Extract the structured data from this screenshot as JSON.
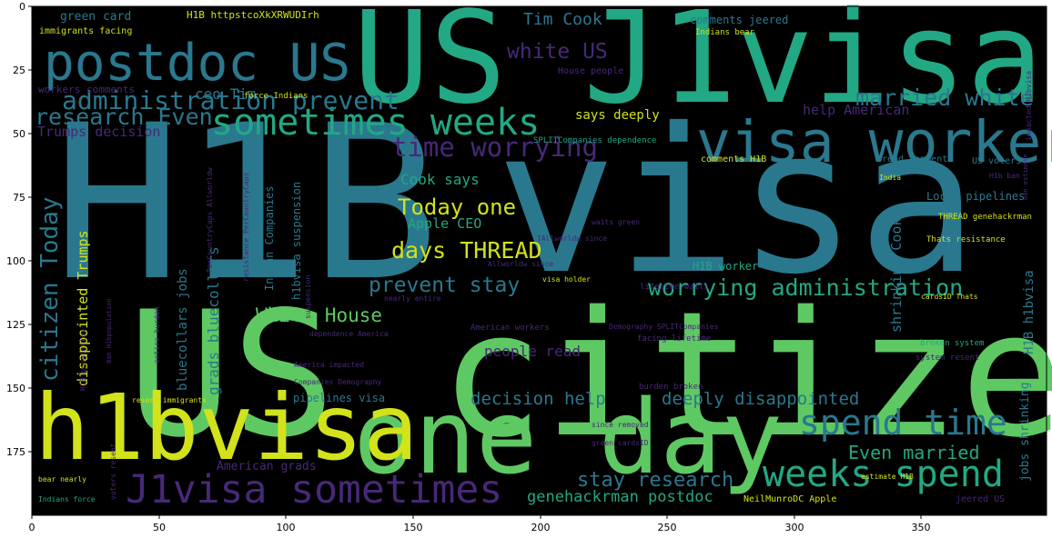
{
  "axes": {
    "x_ticks": [
      "0",
      "50",
      "100",
      "150",
      "200",
      "250",
      "300",
      "350"
    ],
    "y_ticks": [
      "0",
      "25",
      "50",
      "75",
      "100",
      "125",
      "150",
      "175"
    ]
  },
  "words": [
    {
      "text": "H1B",
      "color": "#2a788e"
    },
    {
      "text": "visa",
      "color": "#2a788e"
    },
    {
      "text": "US citizen",
      "color": "#5ec962"
    },
    {
      "text": "US J1visa",
      "color": "#22a884"
    },
    {
      "text": "one day",
      "color": "#5ec962"
    },
    {
      "text": "h1bvisa",
      "color": "#d2e21b"
    },
    {
      "text": "visa worker",
      "color": "#2a788e"
    },
    {
      "text": "postdoc US",
      "color": "#2a788e"
    },
    {
      "text": "sometimes weeks",
      "color": "#22a884"
    },
    {
      "text": "J1visa sometimes",
      "color": "#482878"
    },
    {
      "text": "spend time",
      "color": "#2a788e"
    },
    {
      "text": "weeks spend",
      "color": "#22a884"
    },
    {
      "text": "administration prevent",
      "color": "#2a788e"
    },
    {
      "text": "research Even",
      "color": "#2a788e"
    },
    {
      "text": "married white",
      "color": "#2a788e"
    },
    {
      "text": "time worrying",
      "color": "#482878"
    },
    {
      "text": "worrying administration",
      "color": "#22a884"
    },
    {
      "text": "citizen Today",
      "color": "#2a788e"
    },
    {
      "text": "Today one",
      "color": "#d2e21b"
    },
    {
      "text": "days THREAD",
      "color": "#d2e21b"
    },
    {
      "text": "prevent stay",
      "color": "#2a788e"
    },
    {
      "text": "White House",
      "color": "#5ec962"
    },
    {
      "text": "white US",
      "color": "#482878"
    },
    {
      "text": "stay research",
      "color": "#2a788e"
    },
    {
      "text": "Even married",
      "color": "#22a884"
    },
    {
      "text": "decision help",
      "color": "#2a788e"
    },
    {
      "text": "deeply disappointed",
      "color": "#2a788e"
    },
    {
      "text": "Tim Cook",
      "color": "#2a788e"
    },
    {
      "text": "Apple CEO",
      "color": "#22a884"
    },
    {
      "text": "Cook says",
      "color": "#22a884"
    },
    {
      "text": "says deeply",
      "color": "#d2e21b"
    },
    {
      "text": "ceo Tim",
      "color": "#2a788e"
    },
    {
      "text": "Trumps decision",
      "color": "#482878"
    },
    {
      "text": "help American",
      "color": "#482878"
    },
    {
      "text": "American grads",
      "color": "#482878"
    },
    {
      "text": "grads bluecollars",
      "color": "#2a788e"
    },
    {
      "text": "bluecollars jobs",
      "color": "#2a788e"
    },
    {
      "text": "genehackrman postdoc",
      "color": "#22a884"
    },
    {
      "text": "disappointed Trumps",
      "color": "#d2e21b"
    },
    {
      "text": "shrinking Cooks",
      "color": "#2a788e"
    },
    {
      "text": "H1B h1bvisa",
      "color": "#2a788e"
    },
    {
      "text": "jobs shrinking",
      "color": "#2a788e"
    },
    {
      "text": "green card",
      "color": "#2a788e"
    },
    {
      "text": "H1B httpstcoXkXRWUDIrh",
      "color": "#d2e21b"
    },
    {
      "text": "comments jeered",
      "color": "#2a788e"
    },
    {
      "text": "Indian Companies",
      "color": "#2a788e"
    },
    {
      "text": "h1bvisa suspension",
      "color": "#2a788e"
    },
    {
      "text": "people read",
      "color": "#482878"
    },
    {
      "text": "pipelines visa",
      "color": "#2a788e"
    },
    {
      "text": "H1B worker",
      "color": "#22a884"
    },
    {
      "text": "Locks pipelines",
      "color": "#2a788e"
    },
    {
      "text": "read comments",
      "color": "#2a788e"
    },
    {
      "text": "comments H1B",
      "color": "#d2e21b"
    },
    {
      "text": "US voters",
      "color": "#2a788e"
    },
    {
      "text": "House people",
      "color": "#482878"
    },
    {
      "text": "workers comments",
      "color": "#482878"
    },
    {
      "text": "immigrants facing",
      "color": "#d2e21b"
    },
    {
      "text": "force Indians",
      "color": "#d2e21b"
    },
    {
      "text": "Indians bear",
      "color": "#d2e21b"
    },
    {
      "text": "SPLITCompanies dependence",
      "color": "#22a884"
    },
    {
      "text": "Thats resistance",
      "color": "#d2e21b"
    },
    {
      "text": "THREAD genehackrman",
      "color": "#d2e21b"
    },
    {
      "text": "NeilMunroDC Apple",
      "color": "#d2e21b"
    },
    {
      "text": "jeered US",
      "color": "#482878"
    },
    {
      "text": "lifetime waits",
      "color": "#482878"
    },
    {
      "text": "broken system",
      "color": "#22a884"
    },
    {
      "text": "system resent",
      "color": "#482878"
    },
    {
      "text": "burden broken",
      "color": "#482878"
    },
    {
      "text": "facing lifetime",
      "color": "#482878"
    },
    {
      "text": "American workers",
      "color": "#482878"
    },
    {
      "text": "Demography SPLITCompanies",
      "color": "#482878"
    },
    {
      "text": "visa holder",
      "color": "#d2e21b"
    },
    {
      "text": "America impacted",
      "color": "#482878"
    },
    {
      "text": "Companies Demography",
      "color": "#482878"
    },
    {
      "text": "resent immigrants",
      "color": "#d2e21b"
    },
    {
      "text": "dependence America",
      "color": "#482878"
    },
    {
      "text": "entire burden",
      "color": "#482878"
    },
    {
      "text": "voters resent",
      "color": "#482878"
    },
    {
      "text": "bear nearly",
      "color": "#d2e21b"
    },
    {
      "text": "Indians force",
      "color": "#22a884"
    },
    {
      "text": "estimate H1B",
      "color": "#d2e21b"
    },
    {
      "text": "H1B population",
      "color": "#482878"
    },
    {
      "text": "nearly entire",
      "color": "#482878"
    },
    {
      "text": "India",
      "color": "#d2e21b"
    },
    {
      "text": "waits green",
      "color": "#482878"
    },
    {
      "text": "cardsID Thats",
      "color": "#d2e21b"
    },
    {
      "text": "resistance PerCountryCaps",
      "color": "#482878"
    },
    {
      "text": "impacted H1bvisa",
      "color": "#482878"
    },
    {
      "text": "H1b ban",
      "color": "#482878"
    },
    {
      "text": "PerCountryCaps Allworldw",
      "color": "#482878"
    },
    {
      "text": "green cardsID",
      "color": "#482878"
    },
    {
      "text": "since removed",
      "color": "#482878"
    },
    {
      "text": "Allworldw since",
      "color": "#482878"
    },
    {
      "text": "TAllworldw since",
      "color": "#482878"
    },
    {
      "text": "suspension",
      "color": "#482878"
    },
    {
      "text": "Ban H1bpopulation",
      "color": "#482878"
    },
    {
      "text": "ban estimate",
      "color": "#482878"
    }
  ]
}
